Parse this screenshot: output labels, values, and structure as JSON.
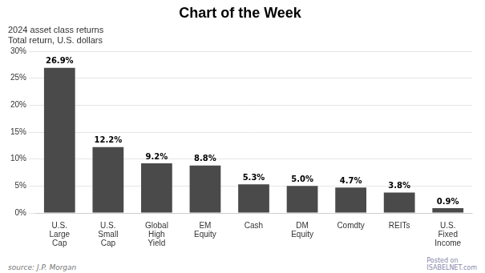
{
  "chart_data": {
    "type": "bar",
    "title": "Chart of the Week",
    "subtitle": [
      "2024 asset class returns",
      "Total return, U.S. dollars"
    ],
    "annotations": [
      "source: J.P. Morgan",
      "Posted on\nISABELNET.com"
    ],
    "categories": [
      "U.S.\nLarge\nCap",
      "U.S.\nSmall\nCap",
      "Global\nHigh\nYield",
      "EM\nEquity",
      "Cash",
      "DM\nEquity",
      "Comdty",
      "REITs",
      "U.S.\nFixed\nIncome"
    ],
    "values": [
      26.9,
      12.2,
      9.2,
      8.8,
      5.3,
      5.0,
      4.7,
      3.8,
      0.9
    ],
    "value_labels": [
      "26.9%",
      "12.2%",
      "9.2%",
      "8.8%",
      "5.3%",
      "5.0%",
      "4.7%",
      "3.8%",
      "0.9%"
    ],
    "data_labels": true,
    "color": "#4a4a4a",
    "ylim": [
      0,
      30
    ],
    "yticks": [
      {
        "value": 0,
        "label": "0%"
      },
      {
        "value": 5,
        "label": "5%"
      },
      {
        "value": 10,
        "label": "10%"
      },
      {
        "value": 15,
        "label": "15%"
      },
      {
        "value": 20,
        "label": "20%"
      },
      {
        "value": 25,
        "label": "25%"
      },
      {
        "value": 30,
        "label": "30%"
      }
    ],
    "grid": true
  }
}
